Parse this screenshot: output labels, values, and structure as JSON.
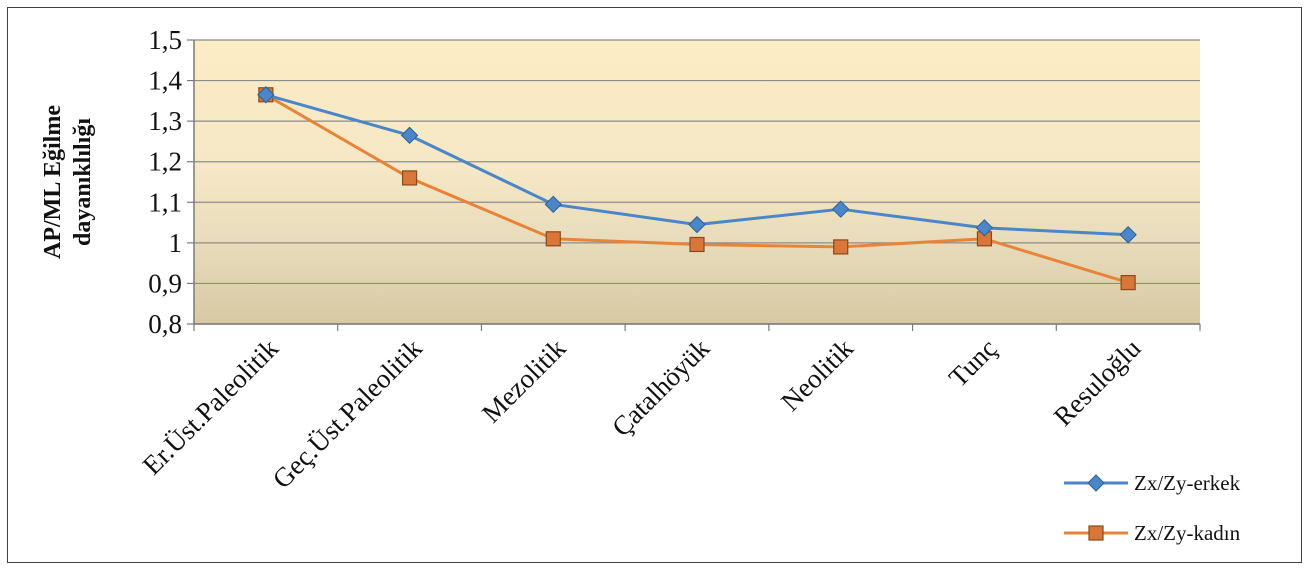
{
  "chart_data": {
    "type": "line",
    "title": "",
    "ylabel_lines": [
      "AP/ML Eğilme",
      "dayanıklılığı"
    ],
    "xlabel": "",
    "categories": [
      "Er.Üst.Paleolitik",
      "Geç.Üst.Paleolitik",
      "Mezolitik",
      "Çatalhöyük",
      "Neolitik",
      "Tunç",
      "Resuloğlu"
    ],
    "ylim": [
      0.8,
      1.5
    ],
    "yticks": [
      {
        "value": 1.5,
        "label": "1,5"
      },
      {
        "value": 1.4,
        "label": "1,4"
      },
      {
        "value": 1.3,
        "label": "1,3"
      },
      {
        "value": 1.2,
        "label": "1,2"
      },
      {
        "value": 1.1,
        "label": "1,1"
      },
      {
        "value": 1.0,
        "label": "1"
      },
      {
        "value": 0.9,
        "label": "0,9"
      },
      {
        "value": 0.8,
        "label": "0,8"
      }
    ],
    "grid": true,
    "legend_position": "right",
    "series": [
      {
        "name": "Zx/Zy-erkek",
        "color": "#4a86c8",
        "marker": "diamond",
        "values": [
          1.365,
          1.265,
          1.095,
          1.045,
          1.083,
          1.037,
          1.02
        ]
      },
      {
        "name": "Zx/Zy-kadın",
        "color": "#e8843a",
        "marker": "square",
        "values": [
          1.365,
          1.16,
          1.01,
          0.996,
          0.99,
          1.01,
          0.902
        ]
      }
    ]
  }
}
